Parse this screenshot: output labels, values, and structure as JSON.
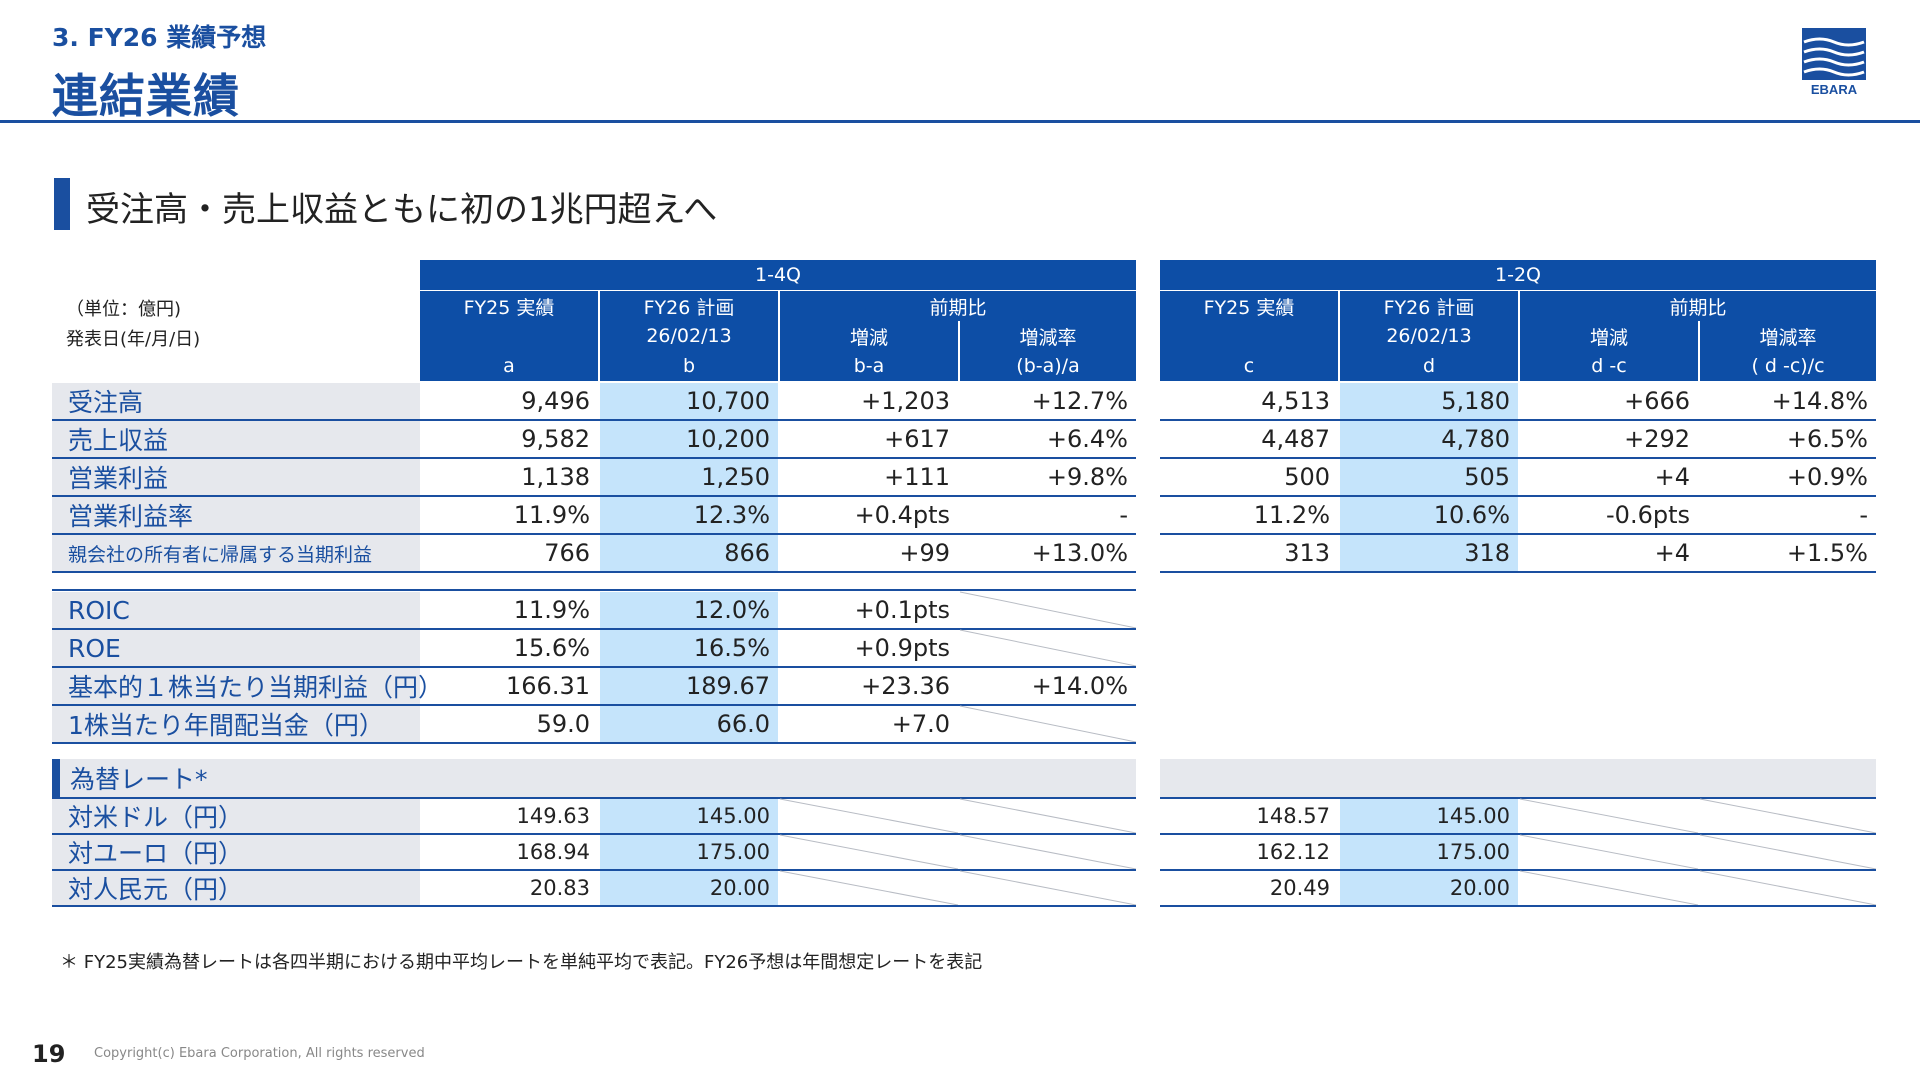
{
  "header": {
    "section_label": "3. FY26 業績予想",
    "page_title": "連結業績",
    "logo_text": "EBARA"
  },
  "headline": "受注高・売上収益ともに初の1兆円超えへ",
  "units": {
    "unit_label": "（単位：億円)",
    "date_label": "発表日(年/月/日)"
  },
  "table_left": {
    "period": "1-4Q",
    "col_prev": "FY25 実績",
    "col_plan": "FY26 計画",
    "plan_date": "26/02/13",
    "col_yoy": "前期比",
    "col_diff": "増減",
    "col_rate": "増減率",
    "key_prev": "a",
    "key_plan": "b",
    "key_diff": "b-a",
    "key_rate": "(b-a)/a"
  },
  "table_right": {
    "period": "1-2Q",
    "col_prev": "FY25 実績",
    "col_plan": "FY26 計画",
    "plan_date": "26/02/13",
    "col_yoy": "前期比",
    "col_diff": "増減",
    "col_rate": "増減率",
    "key_prev": "c",
    "key_plan": "d",
    "key_diff": "d -c",
    "key_rate": "( d -c)/c"
  },
  "main_rows": [
    {
      "label": "受注高",
      "l": [
        "9,496",
        "10,700",
        "+1,203",
        "+12.7%"
      ],
      "r": [
        "4,513",
        "5,180",
        "+666",
        "+14.8%"
      ]
    },
    {
      "label": "売上収益",
      "l": [
        "9,582",
        "10,200",
        "+617",
        "+6.4%"
      ],
      "r": [
        "4,487",
        "4,780",
        "+292",
        "+6.5%"
      ]
    },
    {
      "label": "営業利益",
      "l": [
        "1,138",
        "1,250",
        "+111",
        "+9.8%"
      ],
      "r": [
        "500",
        "505",
        "+4",
        "+0.9%"
      ]
    },
    {
      "label": "営業利益率",
      "l": [
        "11.9%",
        "12.3%",
        "+0.4pts",
        "-"
      ],
      "r": [
        "11.2%",
        "10.6%",
        "-0.6pts",
        "-"
      ]
    },
    {
      "label": "親会社の所有者に帰属する当期利益",
      "l": [
        "766",
        "866",
        "+99",
        "+13.0%"
      ],
      "r": [
        "313",
        "318",
        "+4",
        "+1.5%"
      ]
    }
  ],
  "ratio_rows": [
    {
      "label": "ROIC",
      "l": [
        "11.9%",
        "12.0%",
        "+0.1pts",
        ""
      ]
    },
    {
      "label": "ROE",
      "l": [
        "15.6%",
        "16.5%",
        "+0.9pts",
        ""
      ]
    },
    {
      "label": "基本的１株当たり当期利益（円）",
      "l": [
        "166.31",
        "189.67",
        "+23.36",
        "+14.0%"
      ]
    },
    {
      "label": "1株当たり年間配当金（円）",
      "l": [
        "59.0",
        "66.0",
        "+7.0",
        ""
      ]
    }
  ],
  "fx": {
    "title": "為替レート*",
    "rows": [
      {
        "label": "対米ドル（円）",
        "l": [
          "149.63",
          "145.00"
        ],
        "r": [
          "148.57",
          "145.00"
        ]
      },
      {
        "label": "対ユーロ（円）",
        "l": [
          "168.94",
          "175.00"
        ],
        "r": [
          "162.12",
          "175.00"
        ]
      },
      {
        "label": "対人民元（円）",
        "l": [
          "20.83",
          "20.00"
        ],
        "r": [
          "20.49",
          "20.00"
        ]
      }
    ]
  },
  "footnote": "＊ FY25実績為替レートは各四半期における期中平均レートを単純平均で表記。FY26予想は年間想定レートを表記",
  "footer": {
    "page_number": "19",
    "copyright": "Copyright(c) Ebara Corporation, All rights reserved"
  },
  "colors": {
    "brand_blue": "#1a4fa0",
    "header_fill": "#0d4ea6",
    "plan_highlight": "#c5e4fb",
    "label_fill": "#e6e8ed"
  }
}
